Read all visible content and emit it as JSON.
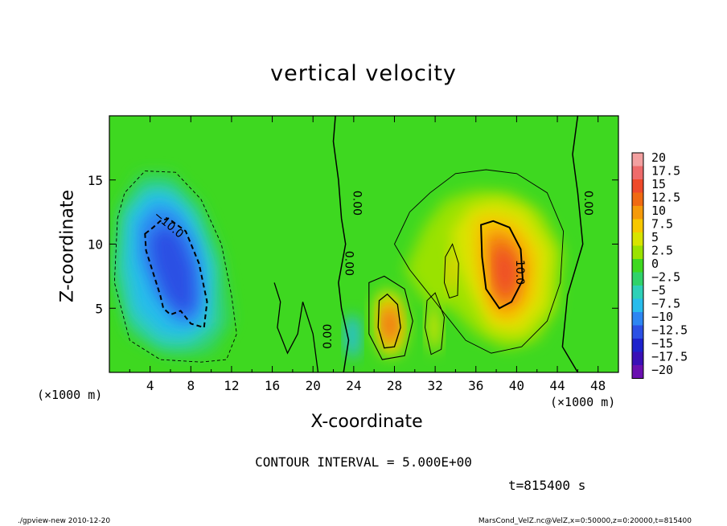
{
  "chart_data": {
    "type": "heatmap",
    "title": "vertical velocity",
    "xlabel": "X-coordinate",
    "ylabel": "Z-coordinate",
    "x_unit": "(×1000 m)",
    "xlim": [
      0,
      50
    ],
    "ylim": [
      0,
      20
    ],
    "x_ticks": [
      4,
      8,
      12,
      16,
      20,
      24,
      28,
      32,
      36,
      40,
      44,
      48
    ],
    "y_ticks": [
      5,
      10,
      15
    ],
    "colorbar": {
      "levels": [
        "20",
        "17.5",
        "15",
        "12.5",
        "10",
        "7.5",
        "5",
        "2.5",
        "0",
        "−2.5",
        "−5",
        "−7.5",
        "−10",
        "−12.5",
        "−15",
        "−17.5",
        "−20"
      ],
      "colors": [
        "#f3a0a0",
        "#ee6b6b",
        "#ef4a2a",
        "#f06a12",
        "#f59a0a",
        "#f7c800",
        "#d8e400",
        "#9ae200",
        "#3ed820",
        "#30d26a",
        "#2ed0b8",
        "#28bcec",
        "#2d86f2",
        "#2b50e4",
        "#1d22cc",
        "#3a10b6",
        "#6a10b0"
      ]
    },
    "contour_interval": "CONTOUR INTERVAL = 5.000E+00",
    "contour_labels": [
      "−10.0",
      "0.00",
      "0.00",
      "0.00",
      "10.0",
      "0.00"
    ],
    "features": [
      {
        "kind": "min",
        "x": 7,
        "z": 8.5,
        "value": -15
      },
      {
        "kind": "max",
        "x": 38.5,
        "z": 8,
        "value": 13
      },
      {
        "kind": "max",
        "x": 27.5,
        "z": 4,
        "value": 11
      }
    ]
  },
  "annotations": {
    "time": "t=815400 s",
    "footer_left": "./gpview-new   2010-12-20",
    "footer_right": "MarsCond_VelZ.nc@VelZ,x=0:50000,z=0:20000,t=815400"
  }
}
